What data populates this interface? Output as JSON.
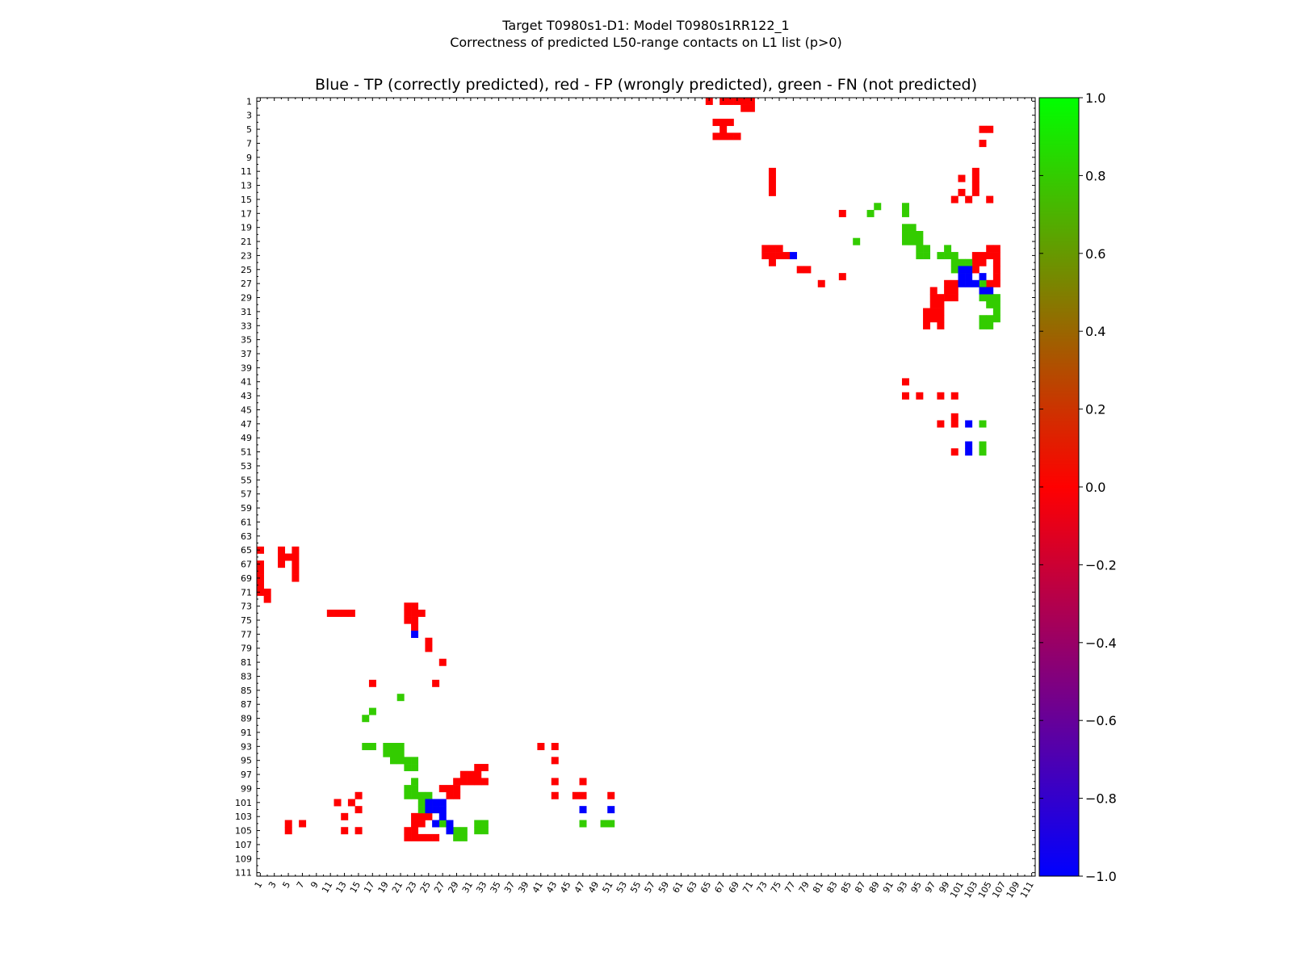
{
  "figure": {
    "suptitle_line1": "Target T0980s1-D1: Model T0980s1RR122_1",
    "suptitle_line2": "Correctness of predicted L50-range contacts on L1 list (p>0)"
  },
  "chart_data": {
    "type": "heatmap",
    "title": "Blue - TP (correctly predicted), red - FP (wrongly predicted), green - FN (not predicted)",
    "xlabel": "",
    "ylabel": "",
    "n_residues": 111,
    "xlim": [
      1,
      111
    ],
    "ylim": [
      1,
      111
    ],
    "x_ticks": [
      1,
      3,
      5,
      7,
      9,
      11,
      13,
      15,
      17,
      19,
      21,
      23,
      25,
      27,
      29,
      31,
      33,
      35,
      37,
      39,
      41,
      43,
      45,
      47,
      49,
      51,
      53,
      55,
      57,
      59,
      61,
      63,
      65,
      67,
      69,
      71,
      73,
      75,
      77,
      79,
      81,
      83,
      85,
      87,
      89,
      91,
      93,
      95,
      97,
      99,
      101,
      103,
      105,
      107,
      109,
      111
    ],
    "y_ticks": [
      1,
      3,
      5,
      7,
      9,
      11,
      13,
      15,
      17,
      19,
      21,
      23,
      25,
      27,
      29,
      31,
      33,
      35,
      37,
      39,
      41,
      43,
      45,
      47,
      49,
      51,
      53,
      55,
      57,
      59,
      61,
      63,
      65,
      67,
      69,
      71,
      73,
      75,
      77,
      79,
      81,
      83,
      85,
      87,
      89,
      91,
      93,
      95,
      97,
      99,
      101,
      103,
      105,
      107,
      109,
      111
    ],
    "legend": {
      "TP": "correctly predicted (blue)",
      "FP": "wrongly predicted (red)",
      "FN": "not predicted (green)"
    },
    "category_colors": {
      "TP": "#0000ff",
      "FP": "#ff0000",
      "FN": "#33cc00"
    },
    "cells": {
      "TP": [
        [
          77,
          23
        ],
        [
          23,
          77
        ],
        [
          25,
          101
        ],
        [
          25,
          102
        ],
        [
          26,
          101
        ],
        [
          26,
          102
        ],
        [
          27,
          101
        ],
        [
          27,
          102
        ],
        [
          27,
          103
        ],
        [
          28,
          104
        ],
        [
          28,
          105
        ],
        [
          26,
          104
        ],
        [
          101,
          25
        ],
        [
          102,
          25
        ],
        [
          101,
          26
        ],
        [
          102,
          26
        ],
        [
          101,
          27
        ],
        [
          102,
          27
        ],
        [
          103,
          27
        ],
        [
          104,
          28
        ],
        [
          105,
          28
        ],
        [
          104,
          26
        ],
        [
          47,
          102
        ],
        [
          51,
          102
        ],
        [
          102,
          47
        ],
        [
          102,
          51
        ],
        [
          102,
          47
        ],
        [
          102,
          50
        ],
        [
          102,
          51
        ],
        [
          104,
          26
        ],
        [
          105,
          28
        ],
        [
          103,
          27
        ]
      ],
      "FP": [
        [
          1,
          65
        ],
        [
          1,
          67
        ],
        [
          1,
          68
        ],
        [
          1,
          69
        ],
        [
          1,
          70
        ],
        [
          1,
          71
        ],
        [
          2,
          71
        ],
        [
          2,
          72
        ],
        [
          4,
          65
        ],
        [
          4,
          66
        ],
        [
          4,
          67
        ],
        [
          5,
          66
        ],
        [
          6,
          65
        ],
        [
          6,
          66
        ],
        [
          6,
          67
        ],
        [
          6,
          68
        ],
        [
          6,
          69
        ],
        [
          5,
          104
        ],
        [
          5,
          105
        ],
        [
          7,
          104
        ],
        [
          11,
          74
        ],
        [
          12,
          74
        ],
        [
          13,
          74
        ],
        [
          14,
          74
        ],
        [
          12,
          101
        ],
        [
          13,
          103
        ],
        [
          14,
          101
        ],
        [
          15,
          100
        ],
        [
          15,
          102
        ],
        [
          15,
          105
        ],
        [
          13,
          105
        ],
        [
          17,
          84
        ],
        [
          23,
          73
        ],
        [
          23,
          74
        ],
        [
          23,
          75
        ],
        [
          23,
          76
        ],
        [
          22,
          73
        ],
        [
          22,
          74
        ],
        [
          22,
          75
        ],
        [
          24,
          74
        ],
        [
          25,
          78
        ],
        [
          25,
          79
        ],
        [
          27,
          81
        ],
        [
          26,
          84
        ],
        [
          22,
          105
        ],
        [
          22,
          106
        ],
        [
          23,
          103
        ],
        [
          23,
          104
        ],
        [
          23,
          105
        ],
        [
          23,
          106
        ],
        [
          24,
          103
        ],
        [
          24,
          104
        ],
        [
          24,
          106
        ],
        [
          25,
          103
        ],
        [
          25,
          106
        ],
        [
          26,
          106
        ],
        [
          27,
          99
        ],
        [
          28,
          99
        ],
        [
          28,
          100
        ],
        [
          29,
          98
        ],
        [
          29,
          99
        ],
        [
          29,
          100
        ],
        [
          30,
          97
        ],
        [
          30,
          98
        ],
        [
          31,
          97
        ],
        [
          31,
          98
        ],
        [
          32,
          96
        ],
        [
          32,
          97
        ],
        [
          32,
          98
        ],
        [
          33,
          96
        ],
        [
          33,
          98
        ],
        [
          41,
          93
        ],
        [
          43,
          93
        ],
        [
          43,
          95
        ],
        [
          43,
          98
        ],
        [
          43,
          100
        ],
        [
          47,
          98
        ],
        [
          47,
          100
        ],
        [
          46,
          100
        ],
        [
          51,
          100
        ],
        [
          65,
          1
        ],
        [
          67,
          1
        ],
        [
          68,
          1
        ],
        [
          69,
          1
        ],
        [
          70,
          1
        ],
        [
          71,
          1
        ],
        [
          71,
          2
        ],
        [
          70,
          2
        ],
        [
          66,
          4
        ],
        [
          67,
          4
        ],
        [
          68,
          4
        ],
        [
          67,
          5
        ],
        [
          66,
          6
        ],
        [
          67,
          6
        ],
        [
          68,
          6
        ],
        [
          69,
          6
        ],
        [
          104,
          5
        ],
        [
          104,
          7
        ],
        [
          105,
          5
        ],
        [
          74,
          11
        ],
        [
          74,
          12
        ],
        [
          74,
          13
        ],
        [
          74,
          14
        ],
        [
          101,
          12
        ],
        [
          103,
          13
        ],
        [
          101,
          14
        ],
        [
          100,
          15
        ],
        [
          102,
          15
        ],
        [
          105,
          15
        ],
        [
          103,
          11
        ],
        [
          103,
          12
        ],
        [
          103,
          14
        ],
        [
          84,
          17
        ],
        [
          73,
          22
        ],
        [
          74,
          22
        ],
        [
          75,
          22
        ],
        [
          73,
          23
        ],
        [
          74,
          23
        ],
        [
          75,
          23
        ],
        [
          76,
          23
        ],
        [
          74,
          24
        ],
        [
          78,
          25
        ],
        [
          79,
          25
        ],
        [
          81,
          27
        ],
        [
          84,
          26
        ],
        [
          105,
          22
        ],
        [
          106,
          22
        ],
        [
          103,
          23
        ],
        [
          104,
          23
        ],
        [
          105,
          23
        ],
        [
          106,
          23
        ],
        [
          103,
          24
        ],
        [
          104,
          24
        ],
        [
          106,
          24
        ],
        [
          103,
          25
        ],
        [
          106,
          25
        ],
        [
          106,
          26
        ],
        [
          106,
          27
        ],
        [
          105,
          27
        ],
        [
          99,
          27
        ],
        [
          99,
          28
        ],
        [
          100,
          28
        ],
        [
          98,
          29
        ],
        [
          99,
          29
        ],
        [
          100,
          29
        ],
        [
          97,
          30
        ],
        [
          98,
          30
        ],
        [
          97,
          31
        ],
        [
          98,
          31
        ],
        [
          96,
          32
        ],
        [
          97,
          32
        ],
        [
          98,
          32
        ],
        [
          96,
          33
        ],
        [
          98,
          33
        ],
        [
          97,
          29
        ],
        [
          100,
          27
        ],
        [
          93,
          41
        ],
        [
          93,
          43
        ],
        [
          95,
          43
        ],
        [
          98,
          43
        ],
        [
          100,
          43
        ],
        [
          98,
          47
        ],
        [
          100,
          47
        ],
        [
          100,
          46
        ],
        [
          100,
          51
        ],
        [
          97,
          30
        ],
        [
          96,
          31
        ],
        [
          97,
          31
        ],
        [
          96,
          32
        ],
        [
          98,
          29
        ],
        [
          97,
          28
        ]
      ],
      "FN": [
        [
          17,
          88
        ],
        [
          17,
          93
        ],
        [
          21,
          86
        ],
        [
          19,
          93
        ],
        [
          19,
          94
        ],
        [
          20,
          93
        ],
        [
          20,
          94
        ],
        [
          20,
          95
        ],
        [
          21,
          93
        ],
        [
          21,
          94
        ],
        [
          21,
          95
        ],
        [
          22,
          95
        ],
        [
          22,
          96
        ],
        [
          23,
          95
        ],
        [
          23,
          96
        ],
        [
          23,
          99
        ],
        [
          23,
          100
        ],
        [
          24,
          100
        ],
        [
          24,
          101
        ],
        [
          24,
          102
        ],
        [
          25,
          100
        ],
        [
          25,
          101
        ],
        [
          25,
          102
        ],
        [
          26,
          102
        ],
        [
          27,
          104
        ],
        [
          28,
          105
        ],
        [
          29,
          105
        ],
        [
          29,
          106
        ],
        [
          30,
          105
        ],
        [
          30,
          106
        ],
        [
          32,
          104
        ],
        [
          33,
          104
        ],
        [
          47,
          104
        ],
        [
          51,
          104
        ],
        [
          88,
          17
        ],
        [
          93,
          17
        ],
        [
          86,
          21
        ],
        [
          93,
          19
        ],
        [
          94,
          19
        ],
        [
          93,
          20
        ],
        [
          94,
          20
        ],
        [
          95,
          20
        ],
        [
          93,
          21
        ],
        [
          94,
          21
        ],
        [
          95,
          21
        ],
        [
          95,
          22
        ],
        [
          96,
          22
        ],
        [
          95,
          23
        ],
        [
          96,
          23
        ],
        [
          99,
          23
        ],
        [
          100,
          23
        ],
        [
          100,
          24
        ],
        [
          101,
          24
        ],
        [
          102,
          24
        ],
        [
          100,
          25
        ],
        [
          101,
          25
        ],
        [
          102,
          25
        ],
        [
          104,
          27
        ],
        [
          105,
          29
        ],
        [
          106,
          29
        ],
        [
          105,
          30
        ],
        [
          106,
          30
        ],
        [
          104,
          29
        ],
        [
          104,
          32
        ],
        [
          104,
          33
        ],
        [
          105,
          32
        ],
        [
          105,
          33
        ],
        [
          106,
          31
        ],
        [
          106,
          32
        ],
        [
          104,
          47
        ],
        [
          104,
          51
        ],
        [
          16,
          89
        ],
        [
          16,
          93
        ],
        [
          89,
          16
        ],
        [
          93,
          16
        ],
        [
          22,
          99
        ],
        [
          23,
          98
        ],
        [
          22,
          100
        ],
        [
          99,
          22
        ],
        [
          98,
          23
        ],
        [
          47,
          104
        ],
        [
          50,
          104
        ],
        [
          104,
          47
        ],
        [
          104,
          50
        ],
        [
          32,
          105
        ],
        [
          33,
          105
        ],
        [
          105,
          32
        ]
      ]
    },
    "colorbar": {
      "min": -1.0,
      "max": 1.0,
      "tick_values": [
        1.0,
        0.8,
        0.6,
        0.4,
        0.2,
        0.0,
        -0.2,
        -0.4,
        -0.6,
        -0.8,
        -1.0
      ],
      "tick_labels": [
        "1.0",
        "0.8",
        "0.6",
        "0.4",
        "0.2",
        "0.0",
        "−0.2",
        "−0.4",
        "−0.6",
        "−0.8",
        "−1.0"
      ],
      "colormap_stops": [
        {
          "value": -1.0,
          "color": "#0000ff"
        },
        {
          "value": 0.0,
          "color": "#ff0000"
        },
        {
          "value": 1.0,
          "color": "#00ff00"
        }
      ]
    }
  }
}
